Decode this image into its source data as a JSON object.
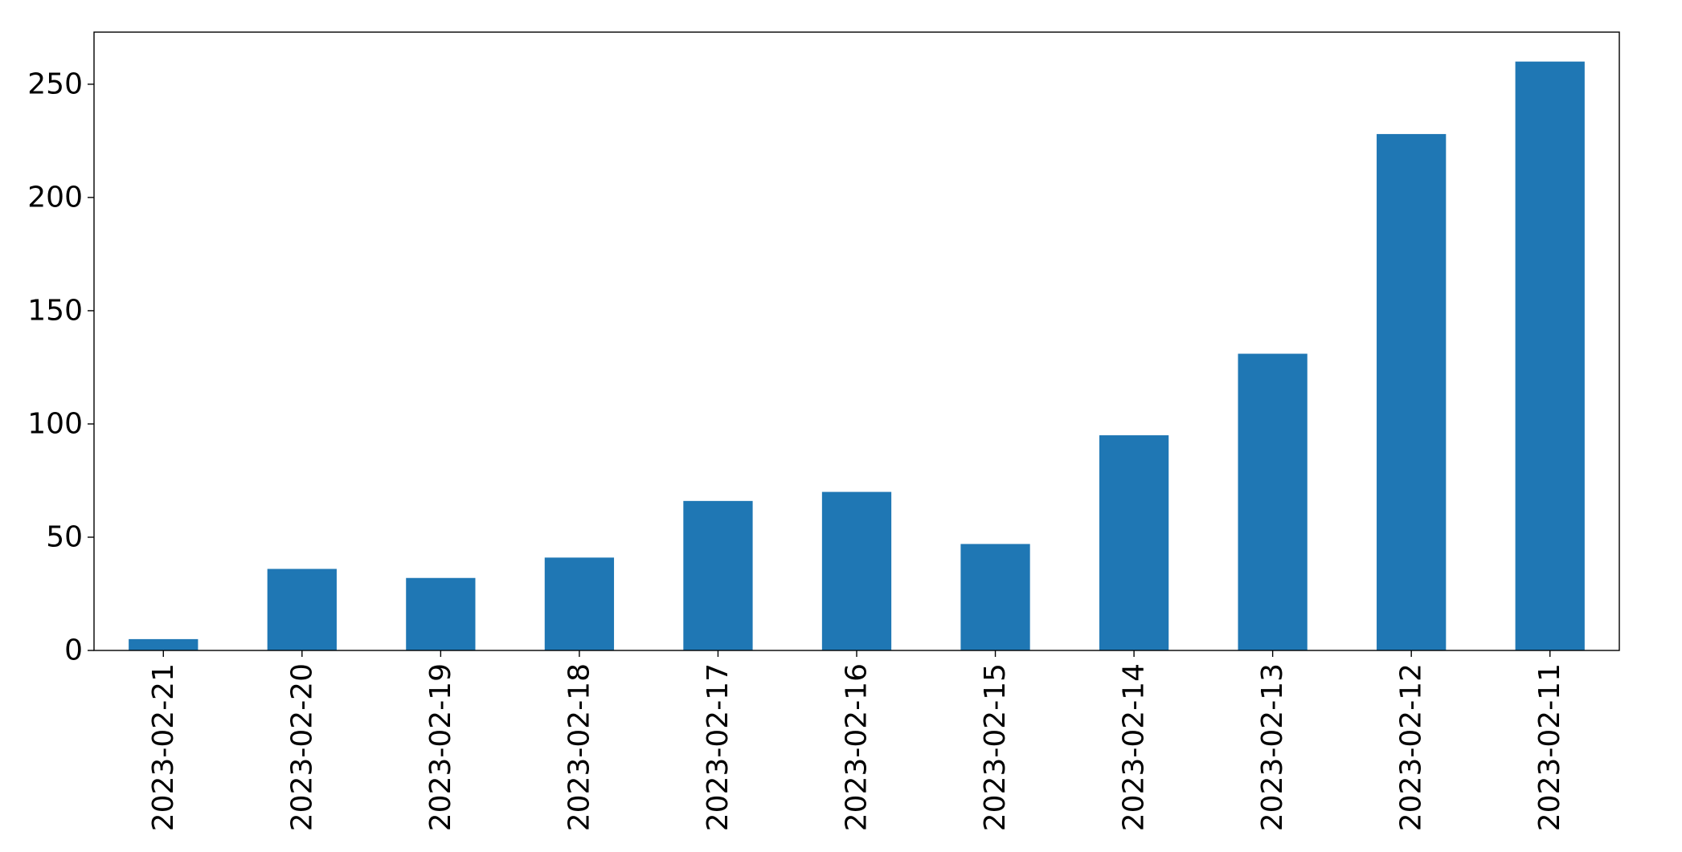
{
  "chart_data": {
    "type": "bar",
    "title": "",
    "xlabel": "",
    "ylabel": "",
    "categories": [
      "2023-02-21",
      "2023-02-20",
      "2023-02-19",
      "2023-02-18",
      "2023-02-17",
      "2023-02-16",
      "2023-02-15",
      "2023-02-14",
      "2023-02-13",
      "2023-02-12",
      "2023-02-11"
    ],
    "values": [
      5,
      36,
      32,
      41,
      66,
      70,
      47,
      95,
      131,
      228,
      260
    ],
    "ylim": [
      0,
      273
    ],
    "yticks": [
      0,
      50,
      100,
      150,
      200,
      250
    ],
    "bar_color": "#1f77b4",
    "grid": false,
    "legend": "none"
  }
}
